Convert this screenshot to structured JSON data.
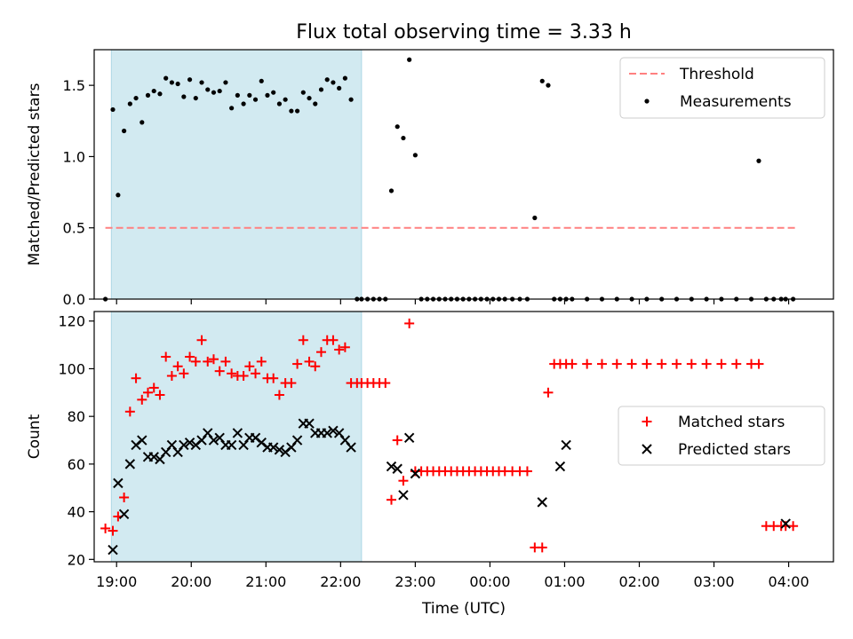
{
  "figure": {
    "title": "Flux total observing time = 3.33 h",
    "xlabel": "Time (UTC)"
  },
  "chart_data": [
    {
      "type": "scatter",
      "panel": "top",
      "ylabel": "Matched/Predicted stars",
      "ylim": [
        0,
        1.75
      ],
      "xlim": [
        -0.3,
        9.6
      ],
      "yticks": [
        0,
        0.5,
        1.0,
        1.5
      ],
      "ytick_labels": [
        "0.0",
        "0.5",
        "1.0",
        "1.5"
      ],
      "xticks": [
        0,
        1,
        2,
        3,
        4,
        5,
        6,
        7,
        8,
        9
      ],
      "shaded_x": [
        -0.07,
        3.28
      ],
      "shaded_color": "#add8e6",
      "legend_position": "upper right",
      "threshold": {
        "name": "Threshold",
        "y": 0.5,
        "x": [
          -0.15,
          9.1
        ],
        "color": "#ff8080",
        "style": "dashed"
      },
      "series": [
        {
          "name": "Measurements",
          "color": "#000000",
          "x": [
            -0.15,
            -0.05,
            0.02,
            0.1,
            0.18,
            0.26,
            0.34,
            0.42,
            0.5,
            0.58,
            0.66,
            0.74,
            0.82,
            0.9,
            0.98,
            1.06,
            1.14,
            1.22,
            1.3,
            1.38,
            1.46,
            1.54,
            1.62,
            1.7,
            1.78,
            1.86,
            1.94,
            2.02,
            2.1,
            2.18,
            2.26,
            2.34,
            2.42,
            2.5,
            2.58,
            2.66,
            2.74,
            2.82,
            2.9,
            2.98,
            3.06,
            3.14,
            3.22,
            3.28,
            3.36,
            3.44,
            3.52,
            3.6,
            3.68,
            3.76,
            3.84,
            3.92,
            4.0,
            4.08,
            4.16,
            4.24,
            4.32,
            4.4,
            4.48,
            4.56,
            4.64,
            4.72,
            4.8,
            4.88,
            4.96,
            5.04,
            5.12,
            5.2,
            5.3,
            5.4,
            5.5,
            5.6,
            5.7,
            5.78,
            5.86,
            5.94,
            6.02,
            6.1,
            6.3,
            6.5,
            6.7,
            6.9,
            7.1,
            7.3,
            7.5,
            7.7,
            7.9,
            8.1,
            8.3,
            8.5,
            8.6,
            8.7,
            8.8,
            8.9,
            8.96,
            9.06
          ],
          "y": [
            0.0,
            1.33,
            0.73,
            1.18,
            1.37,
            1.41,
            1.24,
            1.43,
            1.46,
            1.44,
            1.55,
            1.52,
            1.51,
            1.42,
            1.54,
            1.41,
            1.52,
            1.47,
            1.45,
            1.46,
            1.52,
            1.34,
            1.43,
            1.37,
            1.43,
            1.4,
            1.53,
            1.43,
            1.45,
            1.37,
            1.4,
            1.32,
            1.32,
            1.45,
            1.41,
            1.37,
            1.47,
            1.54,
            1.52,
            1.48,
            1.55,
            1.4,
            0.0,
            0.0,
            0.0,
            0.0,
            0.0,
            0.0,
            0.76,
            1.21,
            1.13,
            1.68,
            1.01,
            0.0,
            0.0,
            0.0,
            0.0,
            0.0,
            0.0,
            0.0,
            0.0,
            0.0,
            0.0,
            0.0,
            0.0,
            0.0,
            0.0,
            0.0,
            0.0,
            0.0,
            0.0,
            0.57,
            1.53,
            1.5,
            0.0,
            0.0,
            0.0,
            0.0,
            0.0,
            0.0,
            0.0,
            0.0,
            0.0,
            0.0,
            0.0,
            0.0,
            0.0,
            0.0,
            0.0,
            0.0,
            0.97,
            0.0,
            0.0,
            0.0,
            0.0,
            0.0
          ]
        }
      ]
    },
    {
      "type": "scatter",
      "panel": "bottom",
      "ylabel": "Count",
      "ylim": [
        19,
        124
      ],
      "xlim": [
        -0.3,
        9.6
      ],
      "yticks": [
        20,
        40,
        60,
        80,
        100,
        120
      ],
      "ytick_labels": [
        "20",
        "40",
        "60",
        "80",
        "100",
        "120"
      ],
      "xticks": [
        0,
        1,
        2,
        3,
        4,
        5,
        6,
        7,
        8,
        9
      ],
      "xtick_labels": [
        "19:00",
        "20:00",
        "21:00",
        "22:00",
        "23:00",
        "00:00",
        "01:00",
        "02:00",
        "03:00",
        "04:00"
      ],
      "shaded_x": [
        -0.07,
        3.28
      ],
      "shaded_color": "#add8e6",
      "legend_position": "center right",
      "series": [
        {
          "name": "Matched stars",
          "marker": "plus",
          "color": "#ff0000",
          "x": [
            -0.15,
            -0.05,
            0.02,
            0.1,
            0.18,
            0.26,
            0.34,
            0.42,
            0.5,
            0.58,
            0.66,
            0.74,
            0.82,
            0.9,
            0.98,
            1.06,
            1.14,
            1.22,
            1.3,
            1.38,
            1.46,
            1.54,
            1.62,
            1.7,
            1.78,
            1.86,
            1.94,
            2.02,
            2.1,
            2.18,
            2.26,
            2.34,
            2.42,
            2.5,
            2.58,
            2.66,
            2.74,
            2.82,
            2.9,
            2.98,
            3.06,
            3.14,
            3.22,
            3.28,
            3.36,
            3.44,
            3.52,
            3.6,
            3.68,
            3.76,
            3.84,
            3.92,
            4.0,
            4.08,
            4.16,
            4.24,
            4.32,
            4.4,
            4.48,
            4.56,
            4.64,
            4.72,
            4.8,
            4.88,
            4.96,
            5.04,
            5.12,
            5.2,
            5.3,
            5.4,
            5.5,
            5.6,
            5.7,
            5.78,
            5.86,
            5.94,
            6.02,
            6.1,
            6.3,
            6.5,
            6.7,
            6.9,
            7.1,
            7.3,
            7.5,
            7.7,
            7.9,
            8.1,
            8.3,
            8.5,
            8.6,
            8.7,
            8.8,
            8.9,
            8.96,
            9.06
          ],
          "y": [
            33,
            32,
            38,
            46,
            82,
            96,
            87,
            90,
            92,
            89,
            105,
            97,
            101,
            98,
            105,
            103,
            112,
            103,
            104,
            99,
            103,
            98,
            97,
            97,
            101,
            98,
            103,
            96,
            96,
            89,
            94,
            94,
            102,
            112,
            103,
            101,
            107,
            112,
            112,
            108,
            109,
            94,
            94,
            94,
            94,
            94,
            94,
            94,
            45,
            70,
            53,
            119,
            57,
            57,
            57,
            57,
            57,
            57,
            57,
            57,
            57,
            57,
            57,
            57,
            57,
            57,
            57,
            57,
            57,
            57,
            57,
            25,
            25,
            90,
            102,
            102,
            102,
            102,
            102,
            102,
            102,
            102,
            102,
            102,
            102,
            102,
            102,
            102,
            102,
            102,
            102,
            34,
            34,
            34,
            34,
            34
          ]
        },
        {
          "name": "Predicted stars",
          "marker": "x",
          "color": "#000000",
          "x": [
            -0.05,
            0.02,
            0.1,
            0.18,
            0.26,
            0.34,
            0.42,
            0.5,
            0.58,
            0.66,
            0.74,
            0.82,
            0.9,
            0.98,
            1.06,
            1.14,
            1.22,
            1.3,
            1.38,
            1.46,
            1.54,
            1.62,
            1.7,
            1.78,
            1.86,
            1.94,
            2.02,
            2.1,
            2.18,
            2.26,
            2.34,
            2.42,
            2.5,
            2.58,
            2.66,
            2.74,
            2.82,
            2.9,
            2.98,
            3.06,
            3.14,
            3.68,
            3.76,
            3.84,
            3.92,
            4.0,
            5.7,
            5.94,
            6.02,
            8.96
          ],
          "y": [
            24,
            52,
            39,
            60,
            68,
            70,
            63,
            63,
            62,
            65,
            68,
            65,
            68,
            69,
            68,
            70,
            73,
            70,
            71,
            68,
            68,
            73,
            68,
            71,
            71,
            69,
            67,
            67,
            66,
            65,
            67,
            70,
            77,
            77,
            73,
            73,
            73,
            74,
            73,
            70,
            67,
            59,
            58,
            47,
            71,
            56,
            44,
            59,
            68,
            35
          ]
        }
      ]
    }
  ]
}
